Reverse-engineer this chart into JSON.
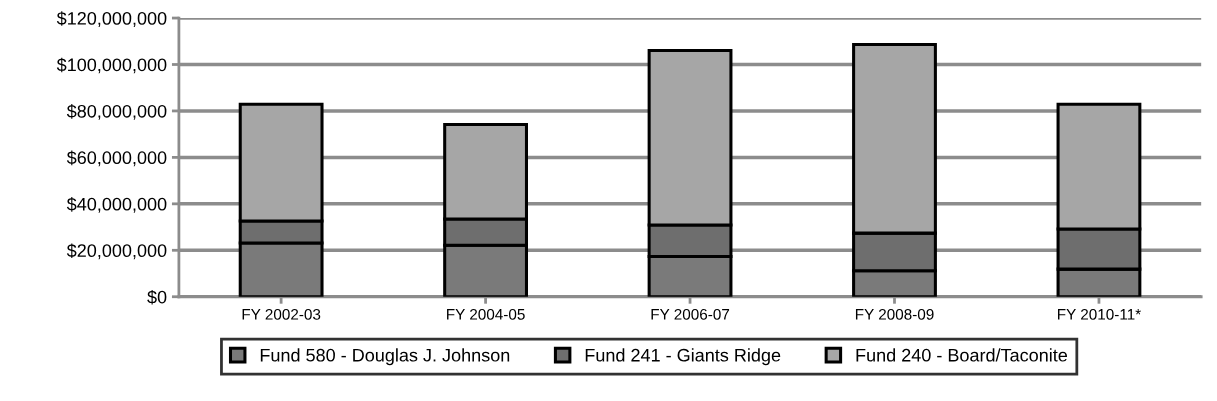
{
  "chart_data": {
    "type": "bar",
    "stacked": true,
    "categories": [
      "FY 2002-03",
      "FY 2004-05",
      "FY 2006-07",
      "FY 2008-09",
      "FY 2010-11*"
    ],
    "series": [
      {
        "name": "Fund 580 - Douglas J. Johnson",
        "color": "#7a7a7a",
        "values": [
          23100000,
          22200000,
          17300000,
          11200000,
          11900000
        ]
      },
      {
        "name": "Fund 241 - Giants Ridge",
        "color": "#6e6e6e",
        "values": [
          9500000,
          11300000,
          13600000,
          16200000,
          17300000
        ]
      },
      {
        "name": "Fund 240 - Board/Taconite",
        "color": "#a6a6a6",
        "values": [
          50300000,
          40700000,
          75100000,
          81200000,
          53700000
        ]
      }
    ],
    "ylim": [
      0,
      120000000
    ],
    "yticks": [
      {
        "value": 0,
        "label": "$0"
      },
      {
        "value": 20000000,
        "label": "$20,000,000"
      },
      {
        "value": 40000000,
        "label": "$40,000,000"
      },
      {
        "value": 60000000,
        "label": "$60,000,000"
      },
      {
        "value": 80000000,
        "label": "$80,000,000"
      },
      {
        "value": 100000000,
        "label": "$100,000,000"
      },
      {
        "value": 120000000,
        "label": "$120,000,000"
      }
    ],
    "grid": "y",
    "legend": "bottom"
  }
}
